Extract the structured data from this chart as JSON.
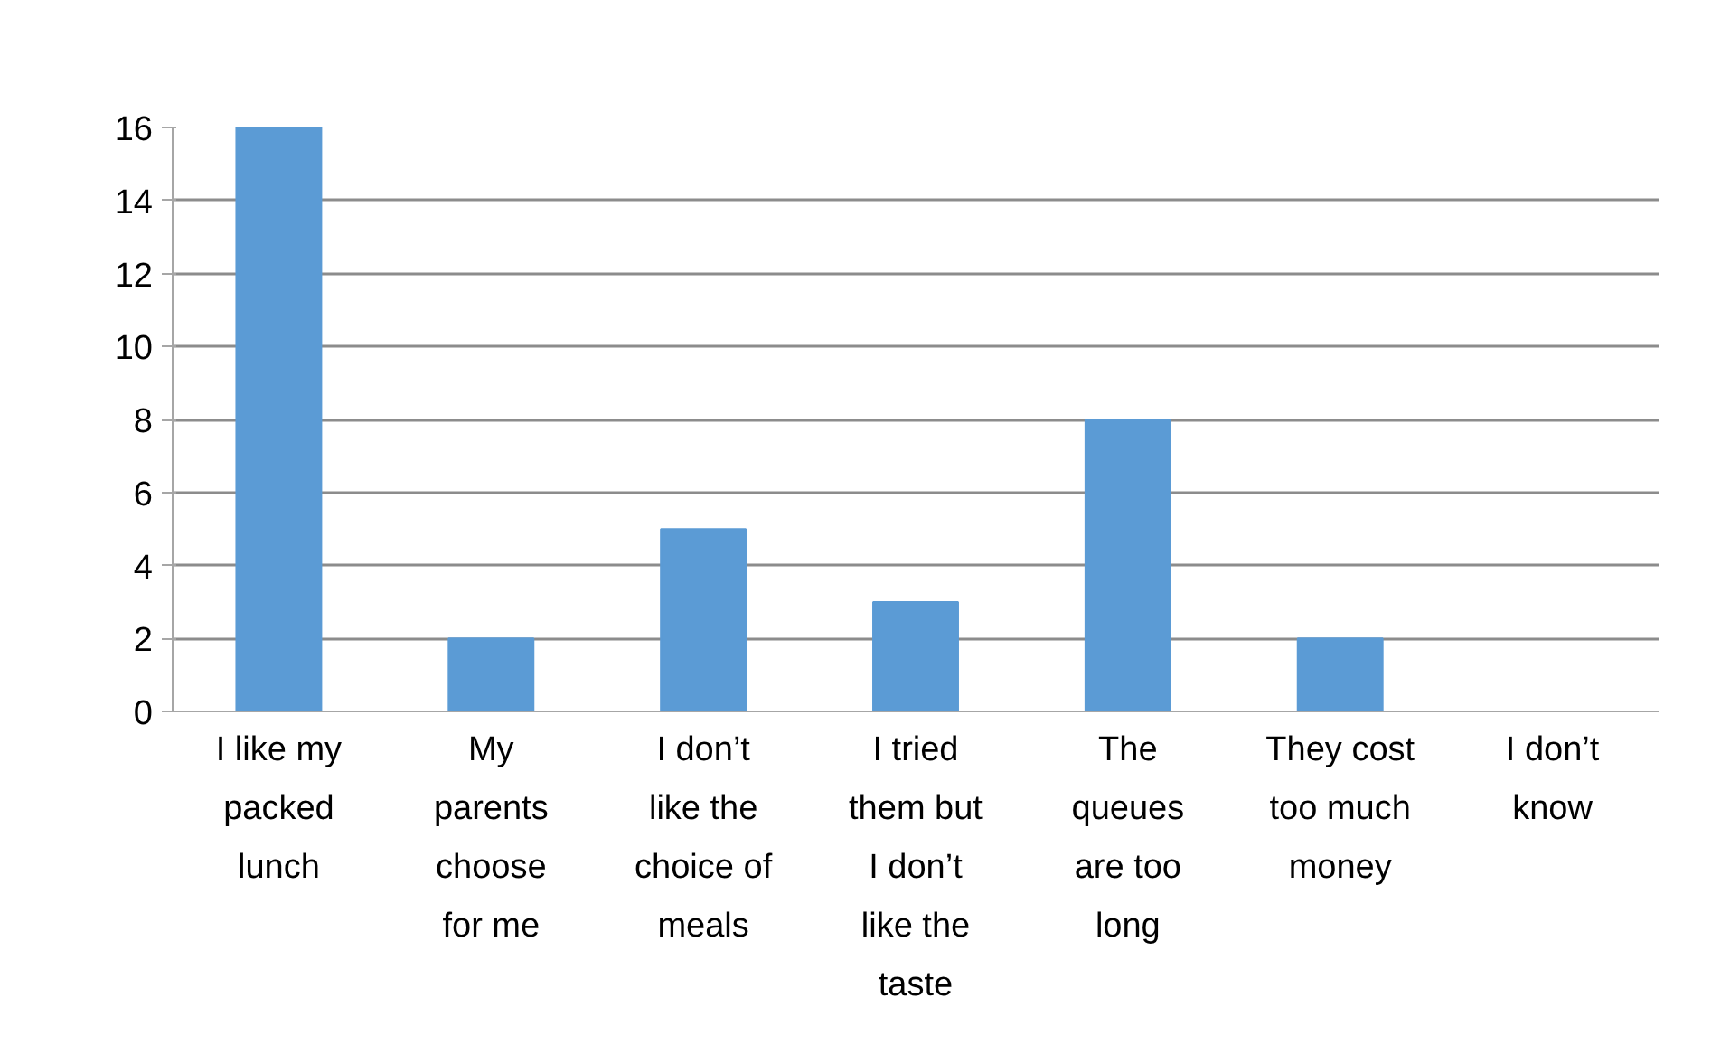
{
  "chart_data": {
    "type": "bar",
    "categories": [
      "I like my packed lunch",
      "My parents choose for me",
      "I don’t like the choice of meals",
      "I tried them but I don’t like the taste",
      "The queues are too long",
      "They cost too much money",
      "I don’t know"
    ],
    "values": [
      16,
      2,
      5,
      3,
      8,
      2,
      0
    ],
    "color": "#5b9bd5",
    "ylim": [
      0,
      16
    ],
    "yticks": [
      0,
      2,
      4,
      6,
      8,
      10,
      12,
      14,
      16
    ],
    "grid": "y"
  }
}
